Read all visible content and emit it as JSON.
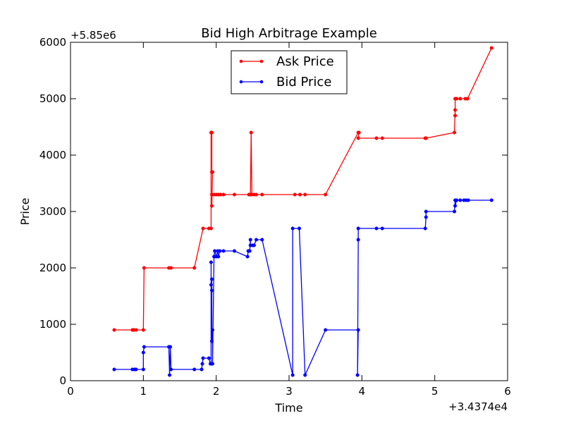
{
  "chart_data": {
    "type": "line",
    "title": "Bid High Arbitrage Example",
    "xlabel": "Time",
    "ylabel": "Price",
    "x_offset_label": "+3.4374e4",
    "y_offset_label": "+5.85e6",
    "xlim": [
      0,
      6
    ],
    "ylim": [
      0,
      6000
    ],
    "xticks": [
      "0",
      "1",
      "2",
      "3",
      "4",
      "5",
      "6"
    ],
    "yticks": [
      "0",
      "1000",
      "2000",
      "3000",
      "4000",
      "5000",
      "6000"
    ],
    "legend_position": "top-center",
    "series": [
      {
        "name": "Ask Price",
        "color": "#ff0000",
        "points": [
          [
            0.6,
            900
          ],
          [
            0.85,
            900
          ],
          [
            0.87,
            900
          ],
          [
            0.9,
            900
          ],
          [
            1.0,
            900
          ],
          [
            1.01,
            2000
          ],
          [
            1.35,
            2000
          ],
          [
            1.38,
            2000
          ],
          [
            1.7,
            2000
          ],
          [
            1.82,
            2700
          ],
          [
            1.9,
            2700
          ],
          [
            1.93,
            2700
          ],
          [
            1.93,
            4400
          ],
          [
            1.94,
            4400
          ],
          [
            1.94,
            3700
          ],
          [
            1.95,
            3700
          ],
          [
            1.94,
            3100
          ],
          [
            1.94,
            3300
          ],
          [
            1.97,
            3300
          ],
          [
            2.0,
            3300
          ],
          [
            2.03,
            3300
          ],
          [
            2.06,
            3300
          ],
          [
            2.1,
            3300
          ],
          [
            2.25,
            3300
          ],
          [
            2.45,
            3300
          ],
          [
            2.47,
            3300
          ],
          [
            2.48,
            4400
          ],
          [
            2.49,
            3300
          ],
          [
            2.52,
            3300
          ],
          [
            2.55,
            3300
          ],
          [
            2.63,
            3300
          ],
          [
            3.08,
            3300
          ],
          [
            3.15,
            3300
          ],
          [
            3.22,
            3300
          ],
          [
            3.5,
            3300
          ],
          [
            3.95,
            4400
          ],
          [
            3.96,
            4400
          ],
          [
            3.95,
            4300
          ],
          [
            4.2,
            4300
          ],
          [
            4.28,
            4300
          ],
          [
            4.87,
            4300
          ],
          [
            4.88,
            4300
          ],
          [
            5.27,
            4400
          ],
          [
            5.28,
            4800
          ],
          [
            5.28,
            4700
          ],
          [
            5.28,
            5000
          ],
          [
            5.3,
            5000
          ],
          [
            5.35,
            5000
          ],
          [
            5.42,
            5000
          ],
          [
            5.45,
            5000
          ],
          [
            5.78,
            5900
          ]
        ]
      },
      {
        "name": "Bid Price",
        "color": "#0000ff",
        "points": [
          [
            0.6,
            200
          ],
          [
            0.85,
            200
          ],
          [
            0.88,
            200
          ],
          [
            0.9,
            200
          ],
          [
            1.0,
            200
          ],
          [
            1.0,
            500
          ],
          [
            1.01,
            600
          ],
          [
            1.35,
            600
          ],
          [
            1.36,
            100
          ],
          [
            1.37,
            600
          ],
          [
            1.38,
            200
          ],
          [
            1.7,
            200
          ],
          [
            1.8,
            200
          ],
          [
            1.81,
            300
          ],
          [
            1.82,
            400
          ],
          [
            1.9,
            400
          ],
          [
            1.92,
            300
          ],
          [
            1.93,
            300
          ],
          [
            1.93,
            2100
          ],
          [
            1.93,
            1700
          ],
          [
            1.94,
            1800
          ],
          [
            1.94,
            1600
          ],
          [
            1.94,
            700
          ],
          [
            1.95,
            900
          ],
          [
            1.95,
            300
          ],
          [
            1.97,
            2200
          ],
          [
            1.98,
            2300
          ],
          [
            2.0,
            2200
          ],
          [
            2.02,
            2300
          ],
          [
            2.03,
            2200
          ],
          [
            2.05,
            2300
          ],
          [
            2.1,
            2300
          ],
          [
            2.25,
            2300
          ],
          [
            2.43,
            2200
          ],
          [
            2.44,
            2300
          ],
          [
            2.46,
            2300
          ],
          [
            2.47,
            2500
          ],
          [
            2.47,
            2400
          ],
          [
            2.5,
            2400
          ],
          [
            2.52,
            2400
          ],
          [
            2.55,
            2500
          ],
          [
            2.63,
            2500
          ],
          [
            3.05,
            100
          ],
          [
            3.05,
            2700
          ],
          [
            3.14,
            2700
          ],
          [
            3.22,
            100
          ],
          [
            3.5,
            900
          ],
          [
            3.95,
            900
          ],
          [
            3.94,
            100
          ],
          [
            3.95,
            2500
          ],
          [
            3.95,
            2700
          ],
          [
            4.2,
            2700
          ],
          [
            4.28,
            2700
          ],
          [
            4.87,
            2700
          ],
          [
            4.88,
            2900
          ],
          [
            4.88,
            3000
          ],
          [
            5.27,
            3000
          ],
          [
            5.28,
            3200
          ],
          [
            5.28,
            3100
          ],
          [
            5.3,
            3200
          ],
          [
            5.35,
            3200
          ],
          [
            5.4,
            3200
          ],
          [
            5.43,
            3200
          ],
          [
            5.46,
            3200
          ],
          [
            5.78,
            3200
          ]
        ]
      }
    ]
  }
}
